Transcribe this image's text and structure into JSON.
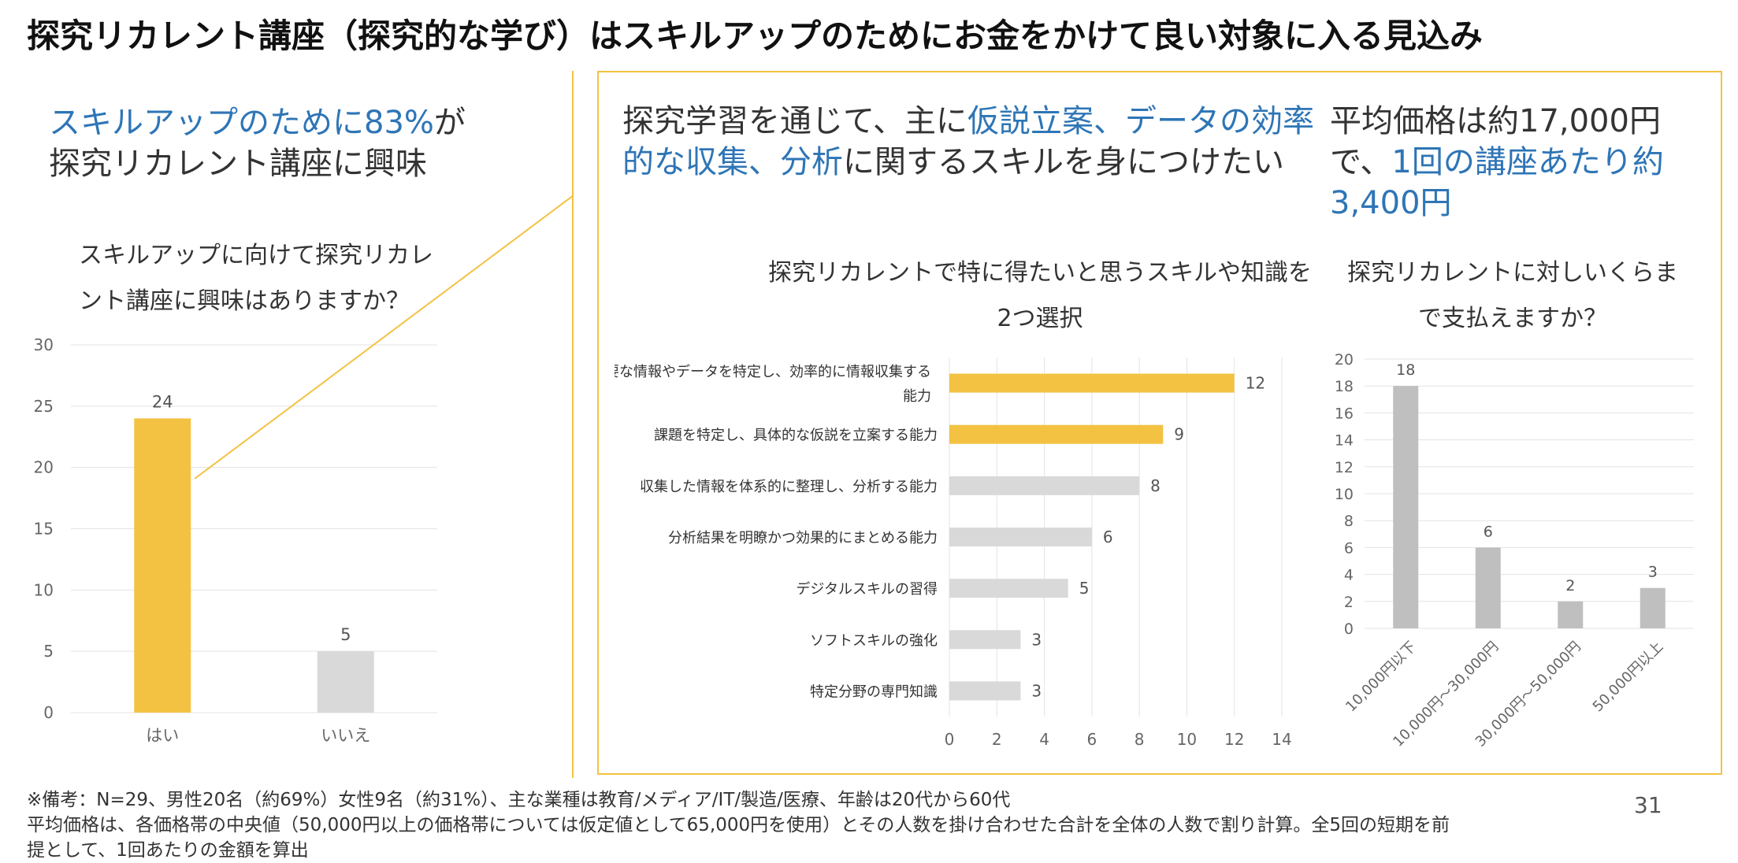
{
  "title": "探究リカレント講座（探究的な学び）はスキルアップのためにお金をかけて良い対象に入る見込み",
  "left": {
    "headline_blue": "スキルアップのために83%",
    "headline_rest": "が",
    "headline_line2": "探究リカレント講座に興味",
    "question_line1": "スキルアップに向けて探究リカレ",
    "question_line2": "ント講座に興味はありますか？"
  },
  "middle": {
    "head_a": "探究学習を通じて、主に",
    "head_b_blue": "仮説立案、データの効率",
    "head_c_blue": "的な収集、分析",
    "head_d": "に関するスキルを身につけたい",
    "question_line1": "探究リカレントで特に得たいと思うスキルや知識を",
    "question_line2": "2つ選択"
  },
  "right": {
    "head_line1": "平均価格は約17,000円",
    "head_a": "で、",
    "head_b_blue": "1回の講座あたり約",
    "head_c_blue": "3,400円",
    "question_line1": "探究リカレントに対しいくらま",
    "question_line2": "で支払えますか？"
  },
  "footnote": {
    "line1": "※備考：N=29、男性20名（約69%）女性9名（約31%）、主な業種は教育/メディア/IT/製造/医療、年齢は20代から60代",
    "line2": "平均価格は、各価格帯の中央値（50,000円以上の価格帯については仮定値として65,000円を使用）とその人数を掛け合わせた合計を全体の人数で割り計算。全5回の短期を前",
    "line3": "提として、1回あたりの金額を算出"
  },
  "page_number": "31",
  "colors": {
    "highlight": "#f4c242",
    "muted": "#d9d9d9",
    "gray_bar": "#bfbfbf",
    "blue": "#2e75b6"
  },
  "chart_data": [
    {
      "type": "bar",
      "categories": [
        "はい",
        "いいえ"
      ],
      "values": [
        24,
        5
      ],
      "ylim": [
        0,
        30
      ],
      "yticks": [
        0,
        5,
        10,
        15,
        20,
        25,
        30
      ],
      "highlight": [
        true,
        false
      ],
      "grid": true
    },
    {
      "type": "bar",
      "orientation": "horizontal",
      "categories": [
        "必要な情報やデータを特定し、効率的に情報収集する能力",
        "課題を特定し、具体的な仮説を立案する能力",
        "収集した情報を体系的に整理し、分析する能力",
        "分析結果を明瞭かつ効果的にまとめる能力",
        "デジタルスキルの習得",
        "ソフトスキルの強化",
        "特定分野の専門知識"
      ],
      "values": [
        12,
        9,
        8,
        6,
        5,
        3,
        3
      ],
      "xlim": [
        0,
        14
      ],
      "xticks": [
        0,
        2,
        4,
        6,
        8,
        10,
        12,
        14
      ],
      "highlight": [
        true,
        true,
        false,
        false,
        false,
        false,
        false
      ],
      "grid": true
    },
    {
      "type": "bar",
      "categories": [
        "10,000円以下",
        "10,000円～30,000円",
        "30,000円～50,000円",
        "50,000円以上"
      ],
      "values": [
        18,
        6,
        2,
        3
      ],
      "ylim": [
        0,
        20
      ],
      "yticks": [
        0,
        2,
        4,
        6,
        8,
        10,
        12,
        14,
        16,
        18,
        20
      ],
      "grid": true
    }
  ]
}
